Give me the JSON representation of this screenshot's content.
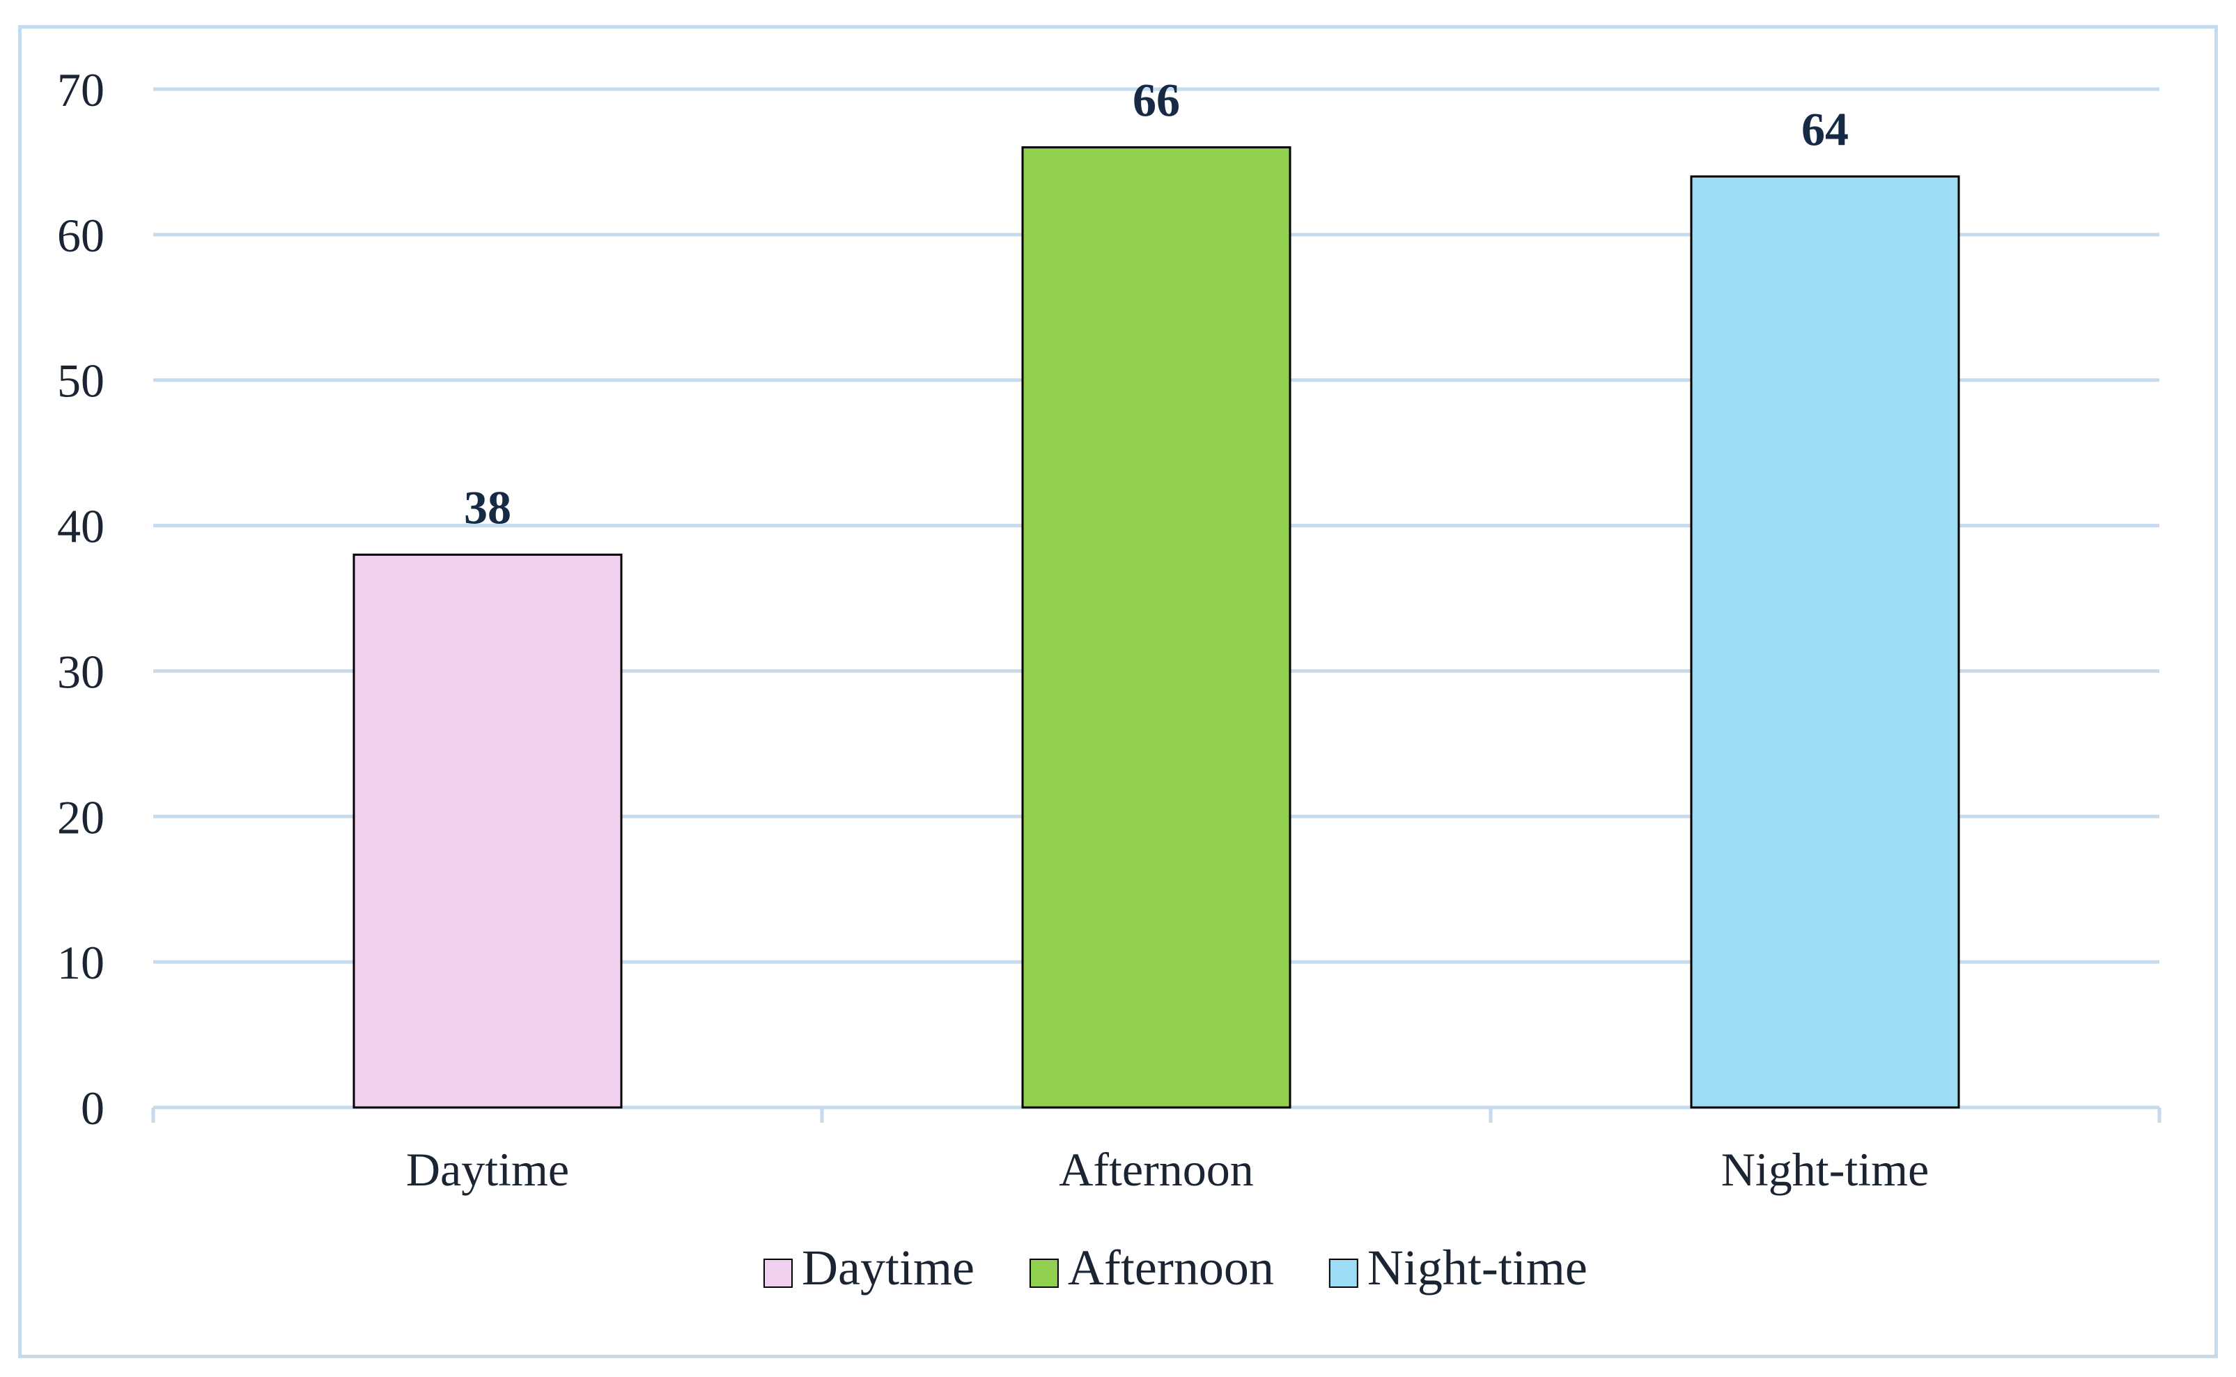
{
  "chart_data": {
    "type": "bar",
    "categories": [
      "Daytime",
      "Afternoon",
      "Night-time"
    ],
    "values": [
      38,
      66,
      64
    ],
    "colors": [
      "#f0d0ee",
      "#92d050",
      "#9ddcf5"
    ],
    "bar_stroke": "#000000",
    "gridline_color": "#c5daec",
    "axis_color": "#c5daec",
    "frame_color": "#c5daec",
    "label_color": "#172a45",
    "data_labels": true,
    "legend": [
      "Daytime",
      "Afternoon",
      "Night-time"
    ],
    "legend_position": "bottom",
    "grid": true,
    "title": "",
    "xlabel": "",
    "ylabel": "",
    "ylim": [
      0,
      70
    ],
    "yticks": [
      0,
      10,
      20,
      30,
      40,
      50,
      60,
      70
    ]
  }
}
